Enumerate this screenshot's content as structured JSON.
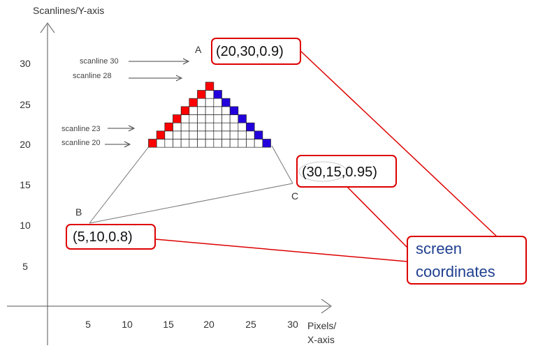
{
  "axes": {
    "y_title": "Scanlines/Y-axis",
    "x_title_line1": "Pixels/",
    "x_title_line2": "X-axis",
    "x_ticks": [
      "5",
      "10",
      "15",
      "20",
      "25",
      "30"
    ],
    "y_ticks": [
      "5",
      "10",
      "15",
      "20",
      "25",
      "30"
    ]
  },
  "vertices": {
    "A": {
      "label": "A",
      "coords": "(20,30,0.9)"
    },
    "B": {
      "label": "B",
      "coords": "(5,10,0.8)"
    },
    "C": {
      "label": "C",
      "coords": "(30,15,0.95)"
    }
  },
  "scanlines": [
    {
      "label": "scanline 30"
    },
    {
      "label": "scanline 28"
    },
    {
      "label": "scanline 23"
    },
    {
      "label": "scanline 20"
    }
  ],
  "callout": {
    "line1": "screen",
    "line2": "coordinates"
  },
  "colors": {
    "left_edge": "#ff0000",
    "right_edge": "#2200dd",
    "apex": "#ffee00",
    "callout_border": "#dd0000",
    "callout_text": "#1f3f8f"
  }
}
